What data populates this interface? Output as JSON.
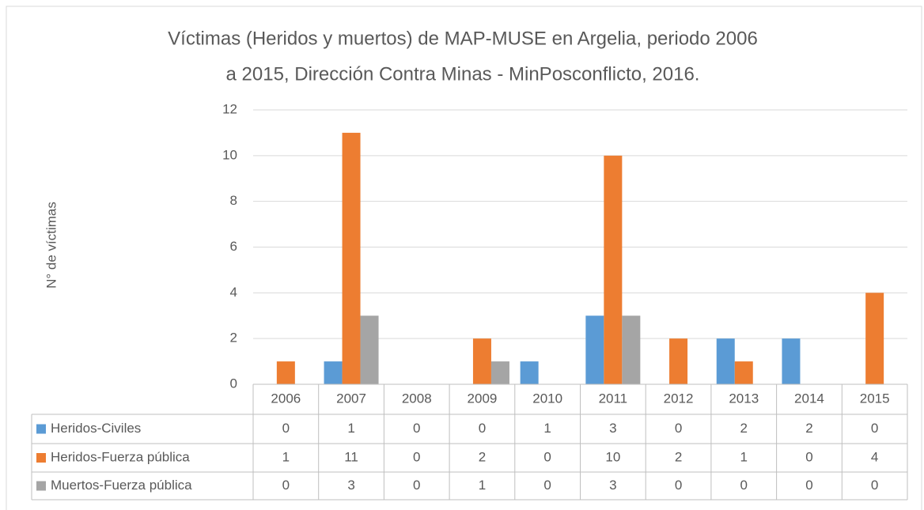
{
  "chart_data": {
    "type": "bar",
    "title": "Víctimas (Heridos y muertos) de MAP-MUSE en Argelia, periodo 2006 a 2015, Dirección Contra Minas - MinPosconflicto, 2016.",
    "y_label": "N° de víctimas",
    "categories": [
      "2006",
      "2007",
      "2008",
      "2009",
      "2010",
      "2011",
      "2012",
      "2013",
      "2014",
      "2015"
    ],
    "series": [
      {
        "name": "Heridos-Civiles",
        "color": "#5b9bd5",
        "values": [
          0,
          1,
          0,
          0,
          1,
          3,
          0,
          2,
          2,
          0
        ]
      },
      {
        "name": "Heridos-Fuerza pública",
        "color": "#ed7d31",
        "values": [
          1,
          11,
          0,
          2,
          0,
          10,
          2,
          1,
          0,
          4
        ]
      },
      {
        "name": "Muertos-Fuerza pública",
        "color": "#a5a5a5",
        "values": [
          0,
          3,
          0,
          1,
          0,
          3,
          0,
          0,
          0,
          0
        ]
      }
    ],
    "ylim": [
      0,
      12
    ],
    "yticks": [
      0,
      2,
      4,
      6,
      8,
      10,
      12
    ],
    "grid": true,
    "data_table": true
  }
}
